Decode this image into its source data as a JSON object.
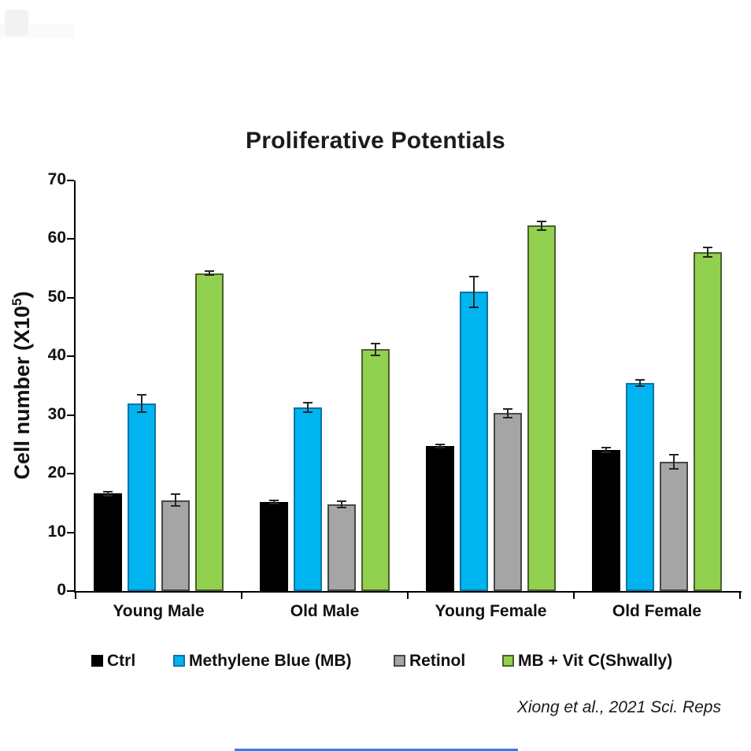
{
  "page": {
    "title": "Proliferative Potentials",
    "citation": "Xiong et al., 2021 Sci. Reps"
  },
  "chart_data": {
    "type": "bar",
    "title": "Proliferative Potentials",
    "ylabel": "Cell number (X10⁵)",
    "ylabel_parts": {
      "base": "Cell number (X10",
      "sup": "5",
      "close": ")"
    },
    "xlabel": "",
    "ylim": [
      0,
      70
    ],
    "yticks": [
      0,
      10,
      20,
      30,
      40,
      50,
      60,
      70
    ],
    "grid": false,
    "legend_position": "bottom",
    "error_bars": true,
    "categories": [
      "Young Male",
      "Old Male",
      "Young Female",
      "Old Female"
    ],
    "series": [
      {
        "name": "Ctrl",
        "color": "#000000",
        "border": "#000000",
        "values": [
          16.6,
          15.2,
          24.7,
          24.1
        ],
        "errors": [
          0.3,
          0.3,
          0.3,
          0.4
        ]
      },
      {
        "name": "Methylene Blue (MB)",
        "color": "#00B4F0",
        "border": "#0C74A6",
        "values": [
          32.0,
          31.3,
          51.0,
          35.5
        ],
        "errors": [
          1.5,
          0.8,
          2.6,
          0.5
        ]
      },
      {
        "name": "Retinol",
        "color": "#A5A5A5",
        "border": "#474747",
        "values": [
          15.5,
          14.8,
          30.3,
          22.0
        ],
        "errors": [
          1.0,
          0.5,
          0.7,
          1.2
        ]
      },
      {
        "name": "MB + Vit C(Shwally)",
        "color": "#92D050",
        "border": "#49602C",
        "values": [
          54.2,
          41.2,
          62.3,
          57.8
        ],
        "errors": [
          0.3,
          1.0,
          0.7,
          0.8
        ]
      }
    ]
  }
}
